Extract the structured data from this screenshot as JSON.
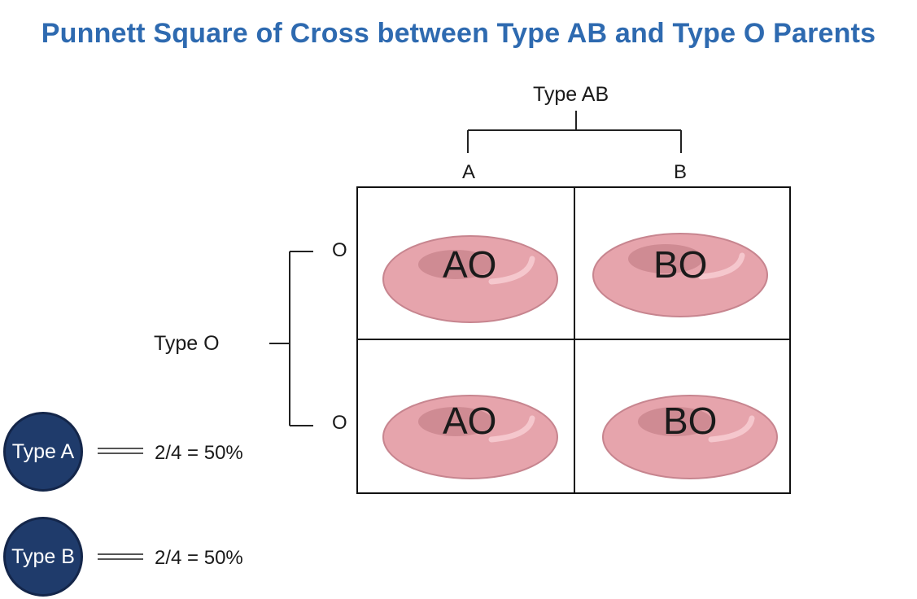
{
  "title": "Punnett Square of Cross between Type AB and Type O Parents",
  "parents": {
    "top": {
      "label": "Type AB",
      "alleles": [
        "A",
        "B"
      ]
    },
    "side": {
      "label": "Type O",
      "alleles": [
        "O",
        "O"
      ]
    }
  },
  "cells": [
    {
      "genotype": "AO"
    },
    {
      "genotype": "BO"
    },
    {
      "genotype": "AO"
    },
    {
      "genotype": "BO"
    }
  ],
  "results": [
    {
      "badge": "Type A",
      "ratio": "2/4 = 50%"
    },
    {
      "badge": "Type B",
      "ratio": "2/4 = 50%"
    }
  ],
  "colors": {
    "title": "#2e6ab0",
    "badge_fill": "#1f3b6b",
    "cell_fill": "#e6a4ac",
    "cell_stroke": "#c7858f"
  }
}
